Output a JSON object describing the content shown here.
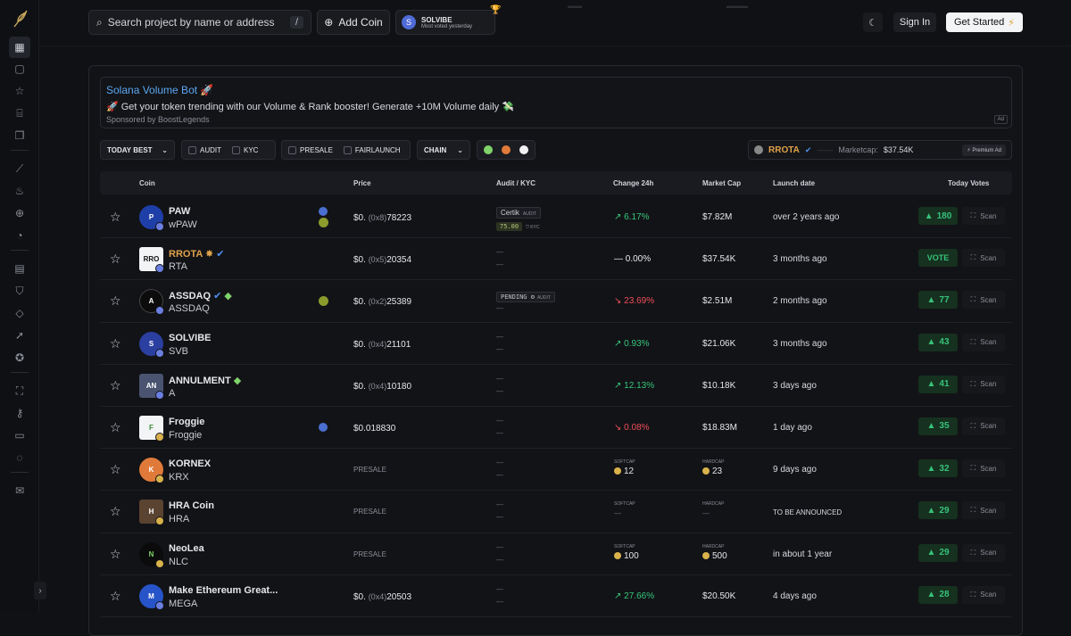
{
  "header": {
    "search_placeholder": "Search project by name or address",
    "search_shortcut": "/",
    "add_coin": "Add Coin",
    "promo_title": "SOLVIBE",
    "promo_sub": "Most voted yesterday",
    "sign_in": "Sign In",
    "get_started": "Get Started"
  },
  "ad": {
    "title": "Solana Volume Bot 🚀",
    "text": "🚀 Get your token trending with our Volume & Rank booster! Generate +10M Volume daily 💸",
    "sponsor": "Sponsored by BoostLegends",
    "tag": "Ad"
  },
  "filters": {
    "today_best": "TODAY BEST",
    "audit": "AUDIT",
    "kyc": "KYC",
    "presale": "PRESALE",
    "fairlaunch": "FAIRLAUNCH",
    "chain": "CHAIN"
  },
  "premium": {
    "name": "RROTA",
    "marketcap_label": "Marketcap:",
    "marketcap_value": "$37.54K",
    "badge": "Premium Ad"
  },
  "table": {
    "headers": [
      "Coin",
      "Price",
      "Audit / KYC",
      "Change 24h",
      "Market Cap",
      "Launch date",
      "Today Votes"
    ],
    "scan_label": "Scan",
    "presale_label": "PRESALE",
    "softcap_label": "SOFTCAP",
    "hardcap_label": "HARDCAP",
    "certik": "Certik",
    "audit": "AUDIT",
    "kyc": "KYC",
    "pending": "PENDING",
    "rows": [
      {
        "name": "PAW",
        "symbol": "wPAW",
        "price_zero": "$0.",
        "price_sub": "(0x8)",
        "price_rest": "78223",
        "change": "6.17%",
        "cap": "$7.82M",
        "launch": "over 2 years ago",
        "votes": "180"
      },
      {
        "name": "RROTA",
        "symbol": "RTA",
        "price_zero": "$0.",
        "price_sub": "(0x5)",
        "price_rest": "20354",
        "change": "0.00%",
        "cap": "$37.54K",
        "launch": "3 months ago",
        "votes": "VOTE"
      },
      {
        "name": "ASSDAQ",
        "symbol": "ASSDAQ",
        "price_zero": "$0.",
        "price_sub": "(0x2)",
        "price_rest": "25389",
        "change": "23.69%",
        "cap": "$2.51M",
        "launch": "2 months ago",
        "votes": "77"
      },
      {
        "name": "SOLVIBE",
        "symbol": "SVB",
        "price_zero": "$0.",
        "price_sub": "(0x4)",
        "price_rest": "21101",
        "change": "0.93%",
        "cap": "$21.06K",
        "launch": "3 months ago",
        "votes": "43"
      },
      {
        "name": "ANNULMENT",
        "symbol": "A",
        "price_zero": "$0.",
        "price_sub": "(0x4)",
        "price_rest": "10180",
        "change": "12.13%",
        "cap": "$10.18K",
        "launch": "3 days ago",
        "votes": "41"
      },
      {
        "name": "Froggie",
        "symbol": "Froggie",
        "price_full": "$0.018830",
        "change": "0.08%",
        "cap": "$18.83M",
        "launch": "1 day ago",
        "votes": "35"
      },
      {
        "name": "KORNEX",
        "symbol": "KRX",
        "softcap": "12",
        "hardcap": "23",
        "launch": "9 days ago",
        "votes": "32"
      },
      {
        "name": "HRA Coin",
        "symbol": "HRA",
        "launch": "TO BE ANNOUNCED",
        "votes": "29"
      },
      {
        "name": "NeoLea",
        "symbol": "NLC",
        "softcap": "100",
        "hardcap": "500",
        "launch": "in about 1 year",
        "votes": "29"
      },
      {
        "name": "Make Ethereum Great...",
        "symbol": "MEGA",
        "price_zero": "$0.",
        "price_sub": "(0x4)",
        "price_rest": "20503",
        "change": "27.66%",
        "cap": "$20.50K",
        "launch": "4 days ago",
        "votes": "28"
      }
    ]
  },
  "colors": {
    "accent_up": "#36c77b",
    "accent_down": "#ef4f5a",
    "brand_link": "#5aa6f0",
    "premium_name": "#e0a24a"
  }
}
